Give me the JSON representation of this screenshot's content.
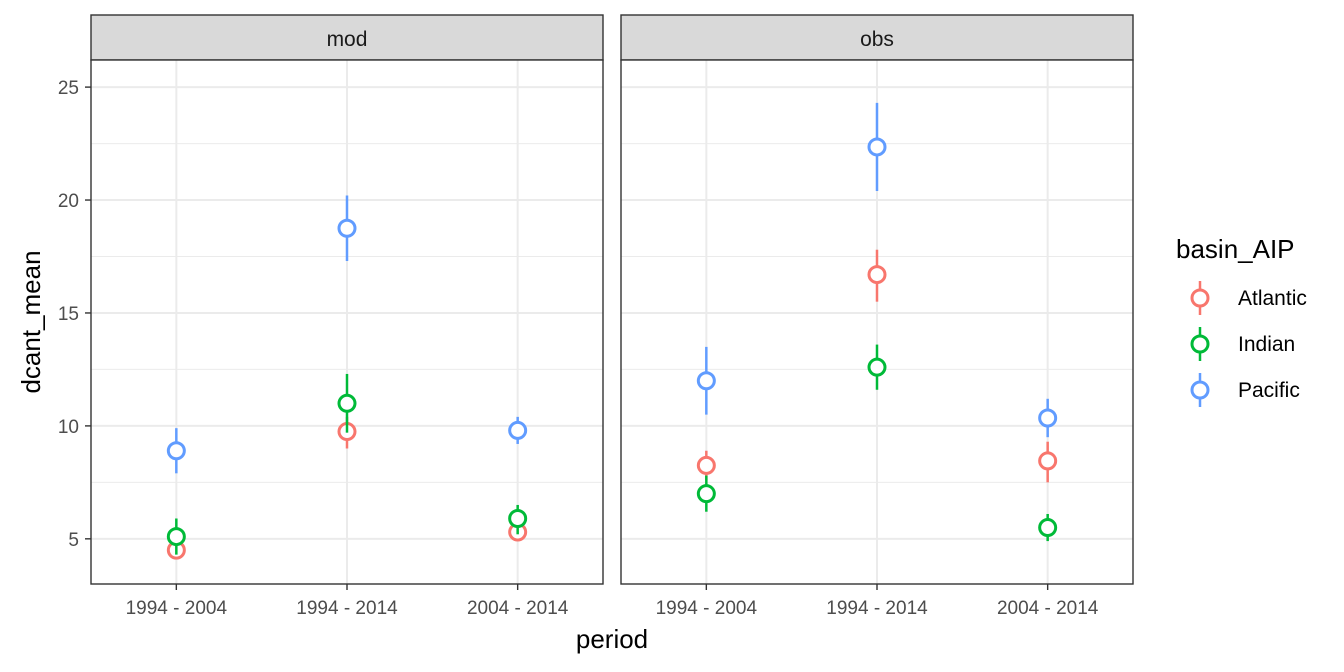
{
  "chart_data": {
    "type": "scatter",
    "subtype": "pointrange",
    "xlabel": "period",
    "ylabel": "dcant_mean",
    "categories": [
      "1994 - 2004",
      "1994 - 2014",
      "2004 - 2014"
    ],
    "y_ticks": [
      5,
      10,
      15,
      20,
      25
    ],
    "ylim": [
      3.0,
      26.2
    ],
    "grid": true,
    "legend": {
      "title": "basin_AIP",
      "placement": "right",
      "entries": [
        "Atlantic",
        "Indian",
        "Pacific"
      ]
    },
    "colors": {
      "Atlantic": "#F8766D",
      "Indian": "#00BA38",
      "Pacific": "#619CFF"
    },
    "panels": [
      {
        "label": "mod",
        "series": [
          {
            "name": "Atlantic",
            "points": [
              {
                "x": "1994 - 2004",
                "y": 4.5,
                "ymin": 4.2,
                "ymax": 4.8
              },
              {
                "x": "1994 - 2014",
                "y": 9.75,
                "ymin": 9.0,
                "ymax": 10.4
              },
              {
                "x": "2004 - 2014",
                "y": 5.3,
                "ymin": 5.1,
                "ymax": 5.5
              }
            ]
          },
          {
            "name": "Indian",
            "points": [
              {
                "x": "1994 - 2004",
                "y": 5.1,
                "ymin": 4.3,
                "ymax": 5.9
              },
              {
                "x": "1994 - 2014",
                "y": 11.0,
                "ymin": 9.7,
                "ymax": 12.3
              },
              {
                "x": "2004 - 2014",
                "y": 5.9,
                "ymin": 5.2,
                "ymax": 6.5
              }
            ]
          },
          {
            "name": "Pacific",
            "points": [
              {
                "x": "1994 - 2004",
                "y": 8.9,
                "ymin": 7.9,
                "ymax": 9.9
              },
              {
                "x": "1994 - 2014",
                "y": 18.75,
                "ymin": 17.3,
                "ymax": 20.2
              },
              {
                "x": "2004 - 2014",
                "y": 9.8,
                "ymin": 9.2,
                "ymax": 10.4
              }
            ]
          }
        ]
      },
      {
        "label": "obs",
        "series": [
          {
            "name": "Atlantic",
            "points": [
              {
                "x": "1994 - 2004",
                "y": 8.25,
                "ymin": 7.6,
                "ymax": 8.9
              },
              {
                "x": "1994 - 2014",
                "y": 16.7,
                "ymin": 15.5,
                "ymax": 17.8
              },
              {
                "x": "2004 - 2014",
                "y": 8.45,
                "ymin": 7.5,
                "ymax": 9.3
              }
            ]
          },
          {
            "name": "Indian",
            "points": [
              {
                "x": "1994 - 2004",
                "y": 7.0,
                "ymin": 6.2,
                "ymax": 7.8
              },
              {
                "x": "1994 - 2014",
                "y": 12.6,
                "ymin": 11.6,
                "ymax": 13.6
              },
              {
                "x": "2004 - 2014",
                "y": 5.5,
                "ymin": 4.9,
                "ymax": 6.1
              }
            ]
          },
          {
            "name": "Pacific",
            "points": [
              {
                "x": "1994 - 2004",
                "y": 12.0,
                "ymin": 10.5,
                "ymax": 13.5
              },
              {
                "x": "1994 - 2014",
                "y": 22.35,
                "ymin": 20.4,
                "ymax": 24.3
              },
              {
                "x": "2004 - 2014",
                "y": 10.35,
                "ymin": 9.5,
                "ymax": 11.2
              }
            ]
          }
        ]
      }
    ]
  }
}
